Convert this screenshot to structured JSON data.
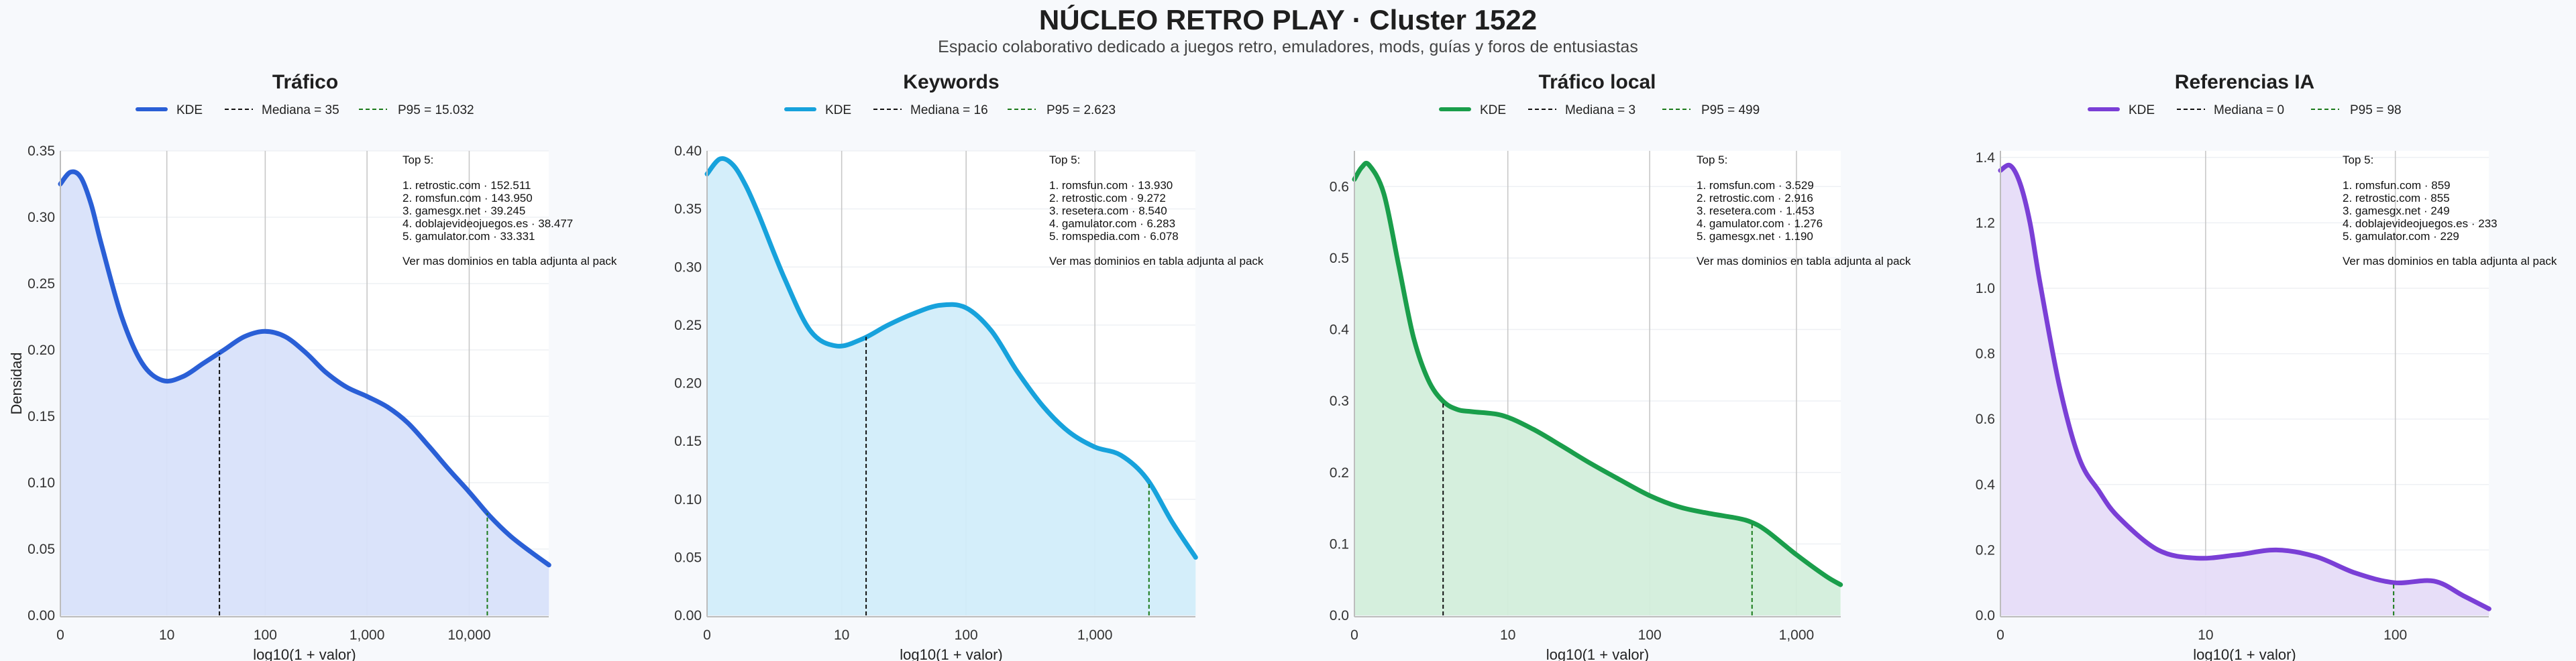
{
  "header": {
    "title": "NÚCLEO RETRO PLAY · Cluster 1522",
    "subtitle": "Espacio colaborativo dedicado a juegos retro, emuladores, mods, guías y foros de entusiastas"
  },
  "common": {
    "xlabel": "log10(1 + valor)",
    "ylabel": "Densidad"
  },
  "chart_data": [
    {
      "type": "area",
      "title": "Tráfico",
      "color": "#2a5fd6",
      "fill": "#d8e2fa",
      "legend": [
        "KDE",
        "Mediana = 35",
        "P95 = 15.032"
      ],
      "median": 35,
      "p95": 15032,
      "x_max": 60000,
      "ylim": [
        0,
        0.35
      ],
      "yticks": [
        0,
        0.05,
        0.1,
        0.15,
        0.2,
        0.25,
        0.3,
        0.35
      ],
      "ytick_labels": [
        "0.00",
        "0.05",
        "0.10",
        "0.15",
        "0.20",
        "0.25",
        "0.30",
        "0.35"
      ],
      "xticks": [
        0,
        10,
        100,
        1000,
        10000
      ],
      "xtick_labels": [
        "0",
        "10",
        "100",
        "1,000",
        "10,000"
      ],
      "kde": {
        "x": [
          0,
          0.1,
          0.2,
          0.3,
          0.4,
          0.6,
          0.8,
          1.0,
          1.2,
          1.4,
          1.6,
          1.8,
          2.0,
          2.2,
          2.4,
          2.6,
          2.8,
          3.0,
          3.2,
          3.4,
          3.6,
          3.8,
          4.0,
          4.2,
          4.4,
          4.6,
          4.78
        ],
        "y": [
          0.325,
          0.334,
          0.33,
          0.31,
          0.28,
          0.225,
          0.19,
          0.177,
          0.18,
          0.19,
          0.2,
          0.21,
          0.214,
          0.21,
          0.198,
          0.183,
          0.172,
          0.165,
          0.157,
          0.145,
          0.128,
          0.11,
          0.093,
          0.075,
          0.06,
          0.048,
          0.038
        ]
      },
      "top5_header": "Top 5:",
      "top5": [
        "1. retrostic.com · 152.511",
        "2. romsfun.com · 143.950",
        "3. gamesgx.net · 39.245",
        "4. doblajevideojuegos.es · 38.477",
        "5. gamulator.com · 33.331"
      ],
      "top5_footer": "Ver mas dominios en tabla adjunta al pack"
    },
    {
      "type": "area",
      "title": "Keywords",
      "color": "#17a2dc",
      "fill": "#d2edfa",
      "legend": [
        "KDE",
        "Mediana = 16",
        "P95 = 2.623"
      ],
      "median": 16,
      "p95": 2623,
      "x_max": 6000,
      "ylim": [
        0,
        0.4
      ],
      "yticks": [
        0,
        0.05,
        0.1,
        0.15,
        0.2,
        0.25,
        0.3,
        0.35,
        0.4
      ],
      "ytick_labels": [
        "0.00",
        "0.05",
        "0.10",
        "0.15",
        "0.20",
        "0.25",
        "0.30",
        "0.35",
        "0.40"
      ],
      "xticks": [
        0,
        10,
        100,
        1000
      ],
      "xtick_labels": [
        "0",
        "10",
        "100",
        "1,000"
      ],
      "kde": {
        "x": [
          0,
          0.1,
          0.2,
          0.3,
          0.4,
          0.6,
          0.8,
          1.0,
          1.2,
          1.4,
          1.6,
          1.8,
          2.0,
          2.2,
          2.4,
          2.6,
          2.8,
          3.0,
          3.2,
          3.4,
          3.6,
          3.78
        ],
        "y": [
          0.38,
          0.393,
          0.388,
          0.37,
          0.345,
          0.29,
          0.245,
          0.232,
          0.238,
          0.25,
          0.26,
          0.267,
          0.265,
          0.245,
          0.21,
          0.18,
          0.158,
          0.145,
          0.138,
          0.118,
          0.08,
          0.05
        ]
      },
      "top5_header": "Top 5:",
      "top5": [
        "1. romsfun.com · 13.930",
        "2. retrostic.com · 9.272",
        "3. resetera.com · 8.540",
        "4. gamulator.com · 6.283",
        "5. romspedia.com · 6.078"
      ],
      "top5_footer": "Ver mas dominios en tabla adjunta al pack"
    },
    {
      "type": "area",
      "title": "Tráfico local",
      "color": "#1a9e4b",
      "fill": "#d3eedb",
      "legend": [
        "KDE",
        "Mediana = 3",
        "P95 = 499"
      ],
      "median": 3,
      "p95": 499,
      "x_max": 2000,
      "ylim": [
        0,
        0.65
      ],
      "yticks": [
        0,
        0.1,
        0.2,
        0.3,
        0.4,
        0.5,
        0.6
      ],
      "ytick_labels": [
        "0.0",
        "0.1",
        "0.2",
        "0.3",
        "0.4",
        "0.5",
        "0.6"
      ],
      "xticks": [
        0,
        10,
        100,
        1000
      ],
      "xtick_labels": [
        "0",
        "10",
        "100",
        "1,000"
      ],
      "kde": {
        "x": [
          0,
          0.05,
          0.1,
          0.2,
          0.3,
          0.4,
          0.5,
          0.6,
          0.7,
          0.8,
          1.0,
          1.2,
          1.4,
          1.6,
          1.8,
          2.0,
          2.2,
          2.4,
          2.6,
          2.7,
          2.8,
          3.0,
          3.2,
          3.3
        ],
        "y": [
          0.61,
          0.627,
          0.63,
          0.59,
          0.49,
          0.39,
          0.33,
          0.3,
          0.288,
          0.285,
          0.28,
          0.262,
          0.238,
          0.213,
          0.19,
          0.168,
          0.152,
          0.143,
          0.136,
          0.13,
          0.118,
          0.085,
          0.055,
          0.043
        ]
      },
      "top5_header": "Top 5:",
      "top5": [
        "1. romsfun.com · 3.529",
        "2. retrostic.com · 2.916",
        "3. resetera.com · 1.453",
        "4. gamulator.com · 1.276",
        "5. gamesgx.net · 1.190"
      ],
      "top5_footer": "Ver mas dominios en tabla adjunta al pack"
    },
    {
      "type": "area",
      "title": "Referencias IA",
      "color": "#7a3fd6",
      "fill": "#e6dcf8",
      "legend": [
        "KDE",
        "Mediana = 0",
        "P95 = 98"
      ],
      "median": 0,
      "p95": 98,
      "x_max": 300,
      "ylim": [
        0,
        1.42
      ],
      "yticks": [
        0,
        0.2,
        0.4,
        0.6,
        0.8,
        1.0,
        1.2,
        1.4
      ],
      "ytick_labels": [
        "0.0",
        "0.2",
        "0.4",
        "0.6",
        "0.8",
        "1.0",
        "1.2",
        "1.4"
      ],
      "xticks": [
        0,
        10,
        100
      ],
      "xtick_labels": [
        "0",
        "10",
        "100"
      ],
      "kde": {
        "x": [
          0,
          0.05,
          0.1,
          0.15,
          0.2,
          0.3,
          0.4,
          0.5,
          0.6,
          0.8,
          1.0,
          1.2,
          1.4,
          1.6,
          1.8,
          2.0,
          2.2,
          2.35,
          2.48
        ],
        "y": [
          1.36,
          1.375,
          1.32,
          1.2,
          1.02,
          0.7,
          0.48,
          0.38,
          0.3,
          0.2,
          0.175,
          0.185,
          0.2,
          0.18,
          0.13,
          0.1,
          0.105,
          0.06,
          0.02
        ]
      },
      "top5_header": "Top 5:",
      "top5": [
        "1. romsfun.com · 859",
        "2. retrostic.com · 855",
        "3. gamesgx.net · 249",
        "4. doblajevideojuegos.es · 233",
        "5. gamulator.com · 229"
      ],
      "top5_footer": "Ver mas dominios en tabla adjunta al pack"
    }
  ]
}
